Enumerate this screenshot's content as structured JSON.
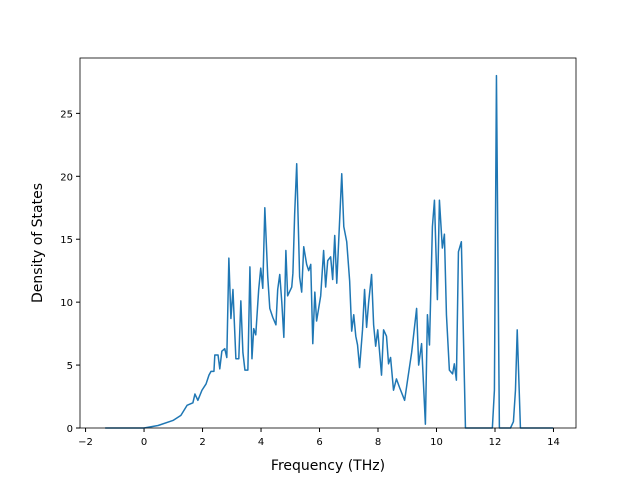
{
  "chart_data": {
    "type": "line",
    "xlabel": "Frequency (THz)",
    "ylabel": "Density of States",
    "xlim": [
      -2.19,
      14.77
    ],
    "ylim": [
      0,
      29.4
    ],
    "xticks": [
      {
        "value": -2,
        "label": "−2"
      },
      0,
      2,
      4,
      6,
      8,
      10,
      12,
      14
    ],
    "yticks": [
      0,
      5,
      10,
      15,
      20,
      25
    ],
    "series": [
      {
        "color": "#1f77b4",
        "x": [
          -1.33,
          0,
          0.48,
          0.99,
          1.26,
          1.47,
          1.67,
          1.74,
          1.84,
          1.98,
          2.12,
          2.22,
          2.29,
          2.39,
          2.42,
          2.53,
          2.59,
          2.66,
          2.76,
          2.83,
          2.9,
          2.97,
          3.04,
          3.14,
          3.24,
          3.31,
          3.38,
          3.45,
          3.55,
          3.62,
          3.69,
          3.75,
          3.82,
          3.92,
          3.99,
          4.06,
          4.13,
          4.23,
          4.3,
          4.4,
          4.51,
          4.57,
          4.64,
          4.71,
          4.78,
          4.85,
          4.91,
          5.05,
          5.09,
          5.15,
          5.22,
          5.32,
          5.39,
          5.46,
          5.56,
          5.63,
          5.7,
          5.77,
          5.84,
          5.9,
          6.04,
          6.14,
          6.21,
          6.28,
          6.38,
          6.45,
          6.52,
          6.59,
          6.76,
          6.83,
          6.93,
          7.03,
          7.1,
          7.17,
          7.24,
          7.3,
          7.37,
          7.47,
          7.54,
          7.61,
          7.68,
          7.78,
          7.85,
          7.92,
          7.99,
          8.12,
          8.19,
          8.29,
          8.36,
          8.43,
          8.53,
          8.63,
          8.74,
          8.91,
          9.01,
          9.15,
          9.32,
          9.39,
          9.49,
          9.62,
          9.69,
          9.76,
          9.86,
          9.93,
          10.03,
          10.1,
          10.2,
          10.27,
          10.34,
          10.44,
          10.55,
          10.61,
          10.68,
          10.75,
          10.85,
          10.99,
          11.91,
          11.98,
          12.05,
          12.15,
          12.53,
          12.63,
          12.7,
          12.76,
          12.87,
          13.99
        ],
        "values": [
          0,
          0,
          0.2,
          0.6,
          1.0,
          1.8,
          2.0,
          2.7,
          2.2,
          3.0,
          3.5,
          4.2,
          4.5,
          4.5,
          5.8,
          5.8,
          4.7,
          6.1,
          6.3,
          5.6,
          13.5,
          8.7,
          11.0,
          5.5,
          5.5,
          10.1,
          6.0,
          4.6,
          4.6,
          12.8,
          5.5,
          7.9,
          7.4,
          11.0,
          12.7,
          11.1,
          17.5,
          12.0,
          9.5,
          8.8,
          8.2,
          11.0,
          12.2,
          10.0,
          7.2,
          14.1,
          10.5,
          11.2,
          12.3,
          17.0,
          21.0,
          12.0,
          10.8,
          14.4,
          13.0,
          12.5,
          13.0,
          6.7,
          10.8,
          8.5,
          10.5,
          14.1,
          11.2,
          13.3,
          13.6,
          11.8,
          15.3,
          11.5,
          20.2,
          16.0,
          14.8,
          11.7,
          7.7,
          9.0,
          7.3,
          6.6,
          4.8,
          7.8,
          11.0,
          8.0,
          10.0,
          12.2,
          8.2,
          6.5,
          7.8,
          4.2,
          7.8,
          7.3,
          5.1,
          5.6,
          3.0,
          3.9,
          3.2,
          2.2,
          3.8,
          6.0,
          9.5,
          5.0,
          6.7,
          0.3,
          9.0,
          6.6,
          16.0,
          18.1,
          10.2,
          18.1,
          14.3,
          15.4,
          9.0,
          4.6,
          4.3,
          5.1,
          3.8,
          14.0,
          14.8,
          0,
          0,
          3.0,
          28.0,
          0,
          0,
          0.5,
          3.0,
          7.8,
          0,
          0
        ]
      }
    ]
  }
}
